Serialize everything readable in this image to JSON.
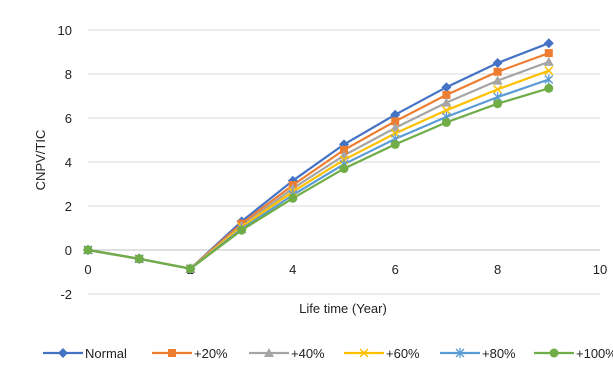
{
  "chart_data": {
    "type": "line",
    "title": "",
    "xlabel": "Life time (Year)",
    "ylabel": "CNPV/TIC",
    "xlim": [
      0,
      10
    ],
    "ylim": [
      -2,
      10
    ],
    "x_ticks": [
      0,
      2,
      4,
      6,
      8,
      10
    ],
    "y_ticks": [
      -2,
      0,
      2,
      4,
      6,
      8,
      10
    ],
    "x_tick_labels": [
      "0",
      "2",
      "4",
      "6",
      "8",
      "10"
    ],
    "y_tick_labels": [
      "-2",
      "0",
      "2",
      "4",
      "6",
      "8",
      "10"
    ],
    "grid": "horizontal",
    "legend_position": "bottom",
    "x": [
      0,
      1,
      2,
      3,
      4,
      5,
      6,
      7,
      8,
      9
    ],
    "series": [
      {
        "name": "Normal",
        "color": "#4472C4",
        "marker": "diamond",
        "values": [
          0,
          -0.4,
          -0.85,
          1.3,
          3.15,
          4.8,
          6.15,
          7.4,
          8.5,
          9.4
        ]
      },
      {
        "name": "+20%",
        "color": "#ED7D31",
        "marker": "square",
        "values": [
          0,
          -0.4,
          -0.85,
          1.2,
          2.95,
          4.55,
          5.85,
          7.05,
          8.1,
          8.95
        ]
      },
      {
        "name": "+40%",
        "color": "#A5A5A5",
        "marker": "triangle",
        "values": [
          0,
          -0.4,
          -0.85,
          1.1,
          2.8,
          4.3,
          5.55,
          6.7,
          7.7,
          8.55
        ]
      },
      {
        "name": "+60%",
        "color": "#FFC000",
        "marker": "x",
        "values": [
          0,
          -0.4,
          -0.85,
          1.05,
          2.65,
          4.1,
          5.3,
          6.35,
          7.3,
          8.15
        ]
      },
      {
        "name": "+80%",
        "color": "#5B9BD5",
        "marker": "asterisk",
        "values": [
          0,
          -0.4,
          -0.85,
          0.95,
          2.5,
          3.9,
          5.05,
          6.05,
          6.95,
          7.75
        ]
      },
      {
        "name": "+100%",
        "color": "#70AD47",
        "marker": "circle",
        "values": [
          0,
          -0.4,
          -0.85,
          0.9,
          2.35,
          3.7,
          4.8,
          5.8,
          6.65,
          7.35
        ]
      }
    ]
  }
}
